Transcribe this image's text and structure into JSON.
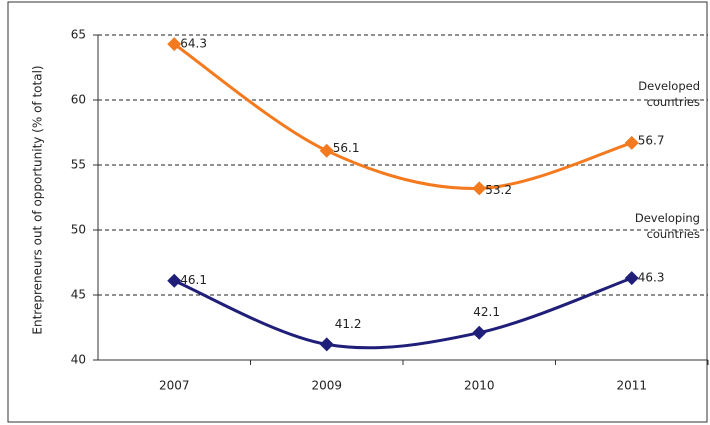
{
  "chart_data": {
    "type": "line",
    "y_label": "Entrepreneurs out of opportunity (% of total)",
    "categories": [
      "2007",
      "2009",
      "2010",
      "2011"
    ],
    "series": [
      {
        "name": "Developed countries",
        "color": "#f47a1f",
        "values": [
          64.3,
          56.1,
          53.2,
          56.7
        ]
      },
      {
        "name": "Developing countries",
        "color": "#1f1f7a",
        "values": [
          46.1,
          41.2,
          42.1,
          46.3
        ]
      }
    ],
    "ylim": [
      40,
      65
    ],
    "yticks": [
      40,
      45,
      50,
      55,
      60,
      65
    ],
    "grid": true
  }
}
